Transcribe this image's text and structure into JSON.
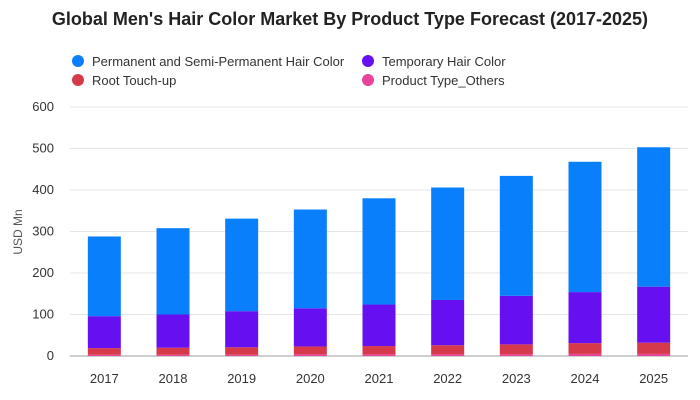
{
  "chart_data": {
    "type": "bar",
    "stacked": true,
    "title": "Global Men's Hair Color Market By Product Type Forecast (2017-2025)",
    "xlabel": "",
    "ylabel": "USD Mn",
    "ylim": [
      0,
      600
    ],
    "yticks": [
      0,
      100,
      200,
      300,
      400,
      500,
      600
    ],
    "categories": [
      "2017",
      "2018",
      "2019",
      "2020",
      "2021",
      "2022",
      "2023",
      "2024",
      "2025"
    ],
    "series": [
      {
        "name": "Product Type_Others",
        "color": "#e8449a",
        "values": [
          3,
          3,
          3,
          4,
          4,
          4,
          4,
          5,
          5
        ]
      },
      {
        "name": "Root Touch-up",
        "color": "#d63a4a",
        "values": [
          16,
          17,
          18,
          19,
          20,
          22,
          24,
          26,
          27
        ]
      },
      {
        "name": "Temporary Hair Color",
        "color": "#6610f2",
        "values": [
          77,
          80,
          87,
          92,
          100,
          109,
          117,
          123,
          135
        ]
      },
      {
        "name": "Permanent and Semi-Permanent Hair Color",
        "color": "#0a7ffb",
        "values": [
          192,
          208,
          223,
          238,
          256,
          271,
          289,
          314,
          336
        ]
      }
    ],
    "legend": [
      {
        "name": "Permanent and Semi-Permanent Hair Color",
        "color": "#0a7ffb"
      },
      {
        "name": "Temporary Hair Color",
        "color": "#6610f2"
      },
      {
        "name": "Root Touch-up",
        "color": "#d63a4a"
      },
      {
        "name": "Product Type_Others",
        "color": "#e8449a"
      }
    ],
    "legend_position": "top-left",
    "grid": true
  }
}
